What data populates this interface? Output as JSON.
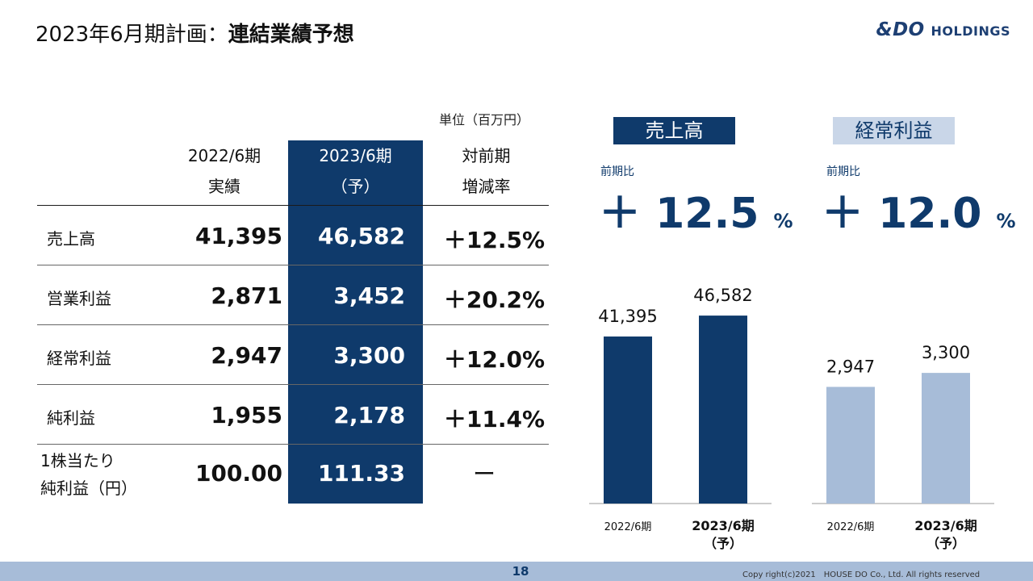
{
  "header": {
    "title_prefix": "2023年6月期計画：",
    "title_main": "連結業績予想",
    "logo_main": "&DO",
    "logo_sub": "HOLDINGS"
  },
  "table": {
    "unit": "単位（百万円）",
    "columns": [
      {
        "line1": "2022/6期",
        "line2": "実績"
      },
      {
        "line1": "2023/6期",
        "line2": "（予）"
      },
      {
        "line1": "対前期",
        "line2": "増減率"
      }
    ],
    "rows": [
      {
        "label": "売上高",
        "label2": "",
        "prev": "41,395",
        "plan": "46,582",
        "change": "＋12.5%"
      },
      {
        "label": "営業利益",
        "label2": "",
        "prev": "2,871",
        "plan": "3,452",
        "change": "＋20.2%"
      },
      {
        "label": "経常利益",
        "label2": "",
        "prev": "2,947",
        "plan": "3,300",
        "change": "＋12.0%"
      },
      {
        "label": "純利益",
        "label2": "",
        "prev": "1,955",
        "plan": "2,178",
        "change": "＋11.4%"
      },
      {
        "label": "1株当たり",
        "label2": "純利益（円）",
        "prev": "100.00",
        "plan": "111.33",
        "change": "ー"
      }
    ]
  },
  "charts": {
    "sales": {
      "title": "売上高",
      "prev_label": "前期比",
      "growth_value": "＋ 12.5",
      "growth_unit": "%"
    },
    "ordinary": {
      "title": "経常利益",
      "prev_label": "前期比",
      "growth_value": "＋ 12.0",
      "growth_unit": "%"
    }
  },
  "chart_data": [
    {
      "type": "bar",
      "title": "売上高",
      "categories": [
        "2022/6期",
        "2023/6期（予）"
      ],
      "category_lines": [
        [
          "2022/6期"
        ],
        [
          "2023/6期",
          "（予）"
        ]
      ],
      "values": [
        41395,
        46582
      ],
      "value_labels": [
        "41,395",
        "46,582"
      ],
      "color": "#0f3a6b",
      "ylim": [
        0,
        52000
      ]
    },
    {
      "type": "bar",
      "title": "経常利益",
      "categories": [
        "2022/6期",
        "2023/6期（予）"
      ],
      "category_lines": [
        [
          "2022/6期"
        ],
        [
          "2023/6期",
          "（予）"
        ]
      ],
      "values": [
        2947,
        3300
      ],
      "value_labels": [
        "2,947",
        "3,300"
      ],
      "color": "#a7bcd8",
      "ylim": [
        0,
        5300
      ]
    }
  ],
  "footer": {
    "page": "18",
    "copyright": "Copy right(c)2021　HOUSE DO Co., Ltd. All rights reserved"
  },
  "colors": {
    "navy": "#0f3a6b",
    "light_blue": "#a7bcd8"
  }
}
